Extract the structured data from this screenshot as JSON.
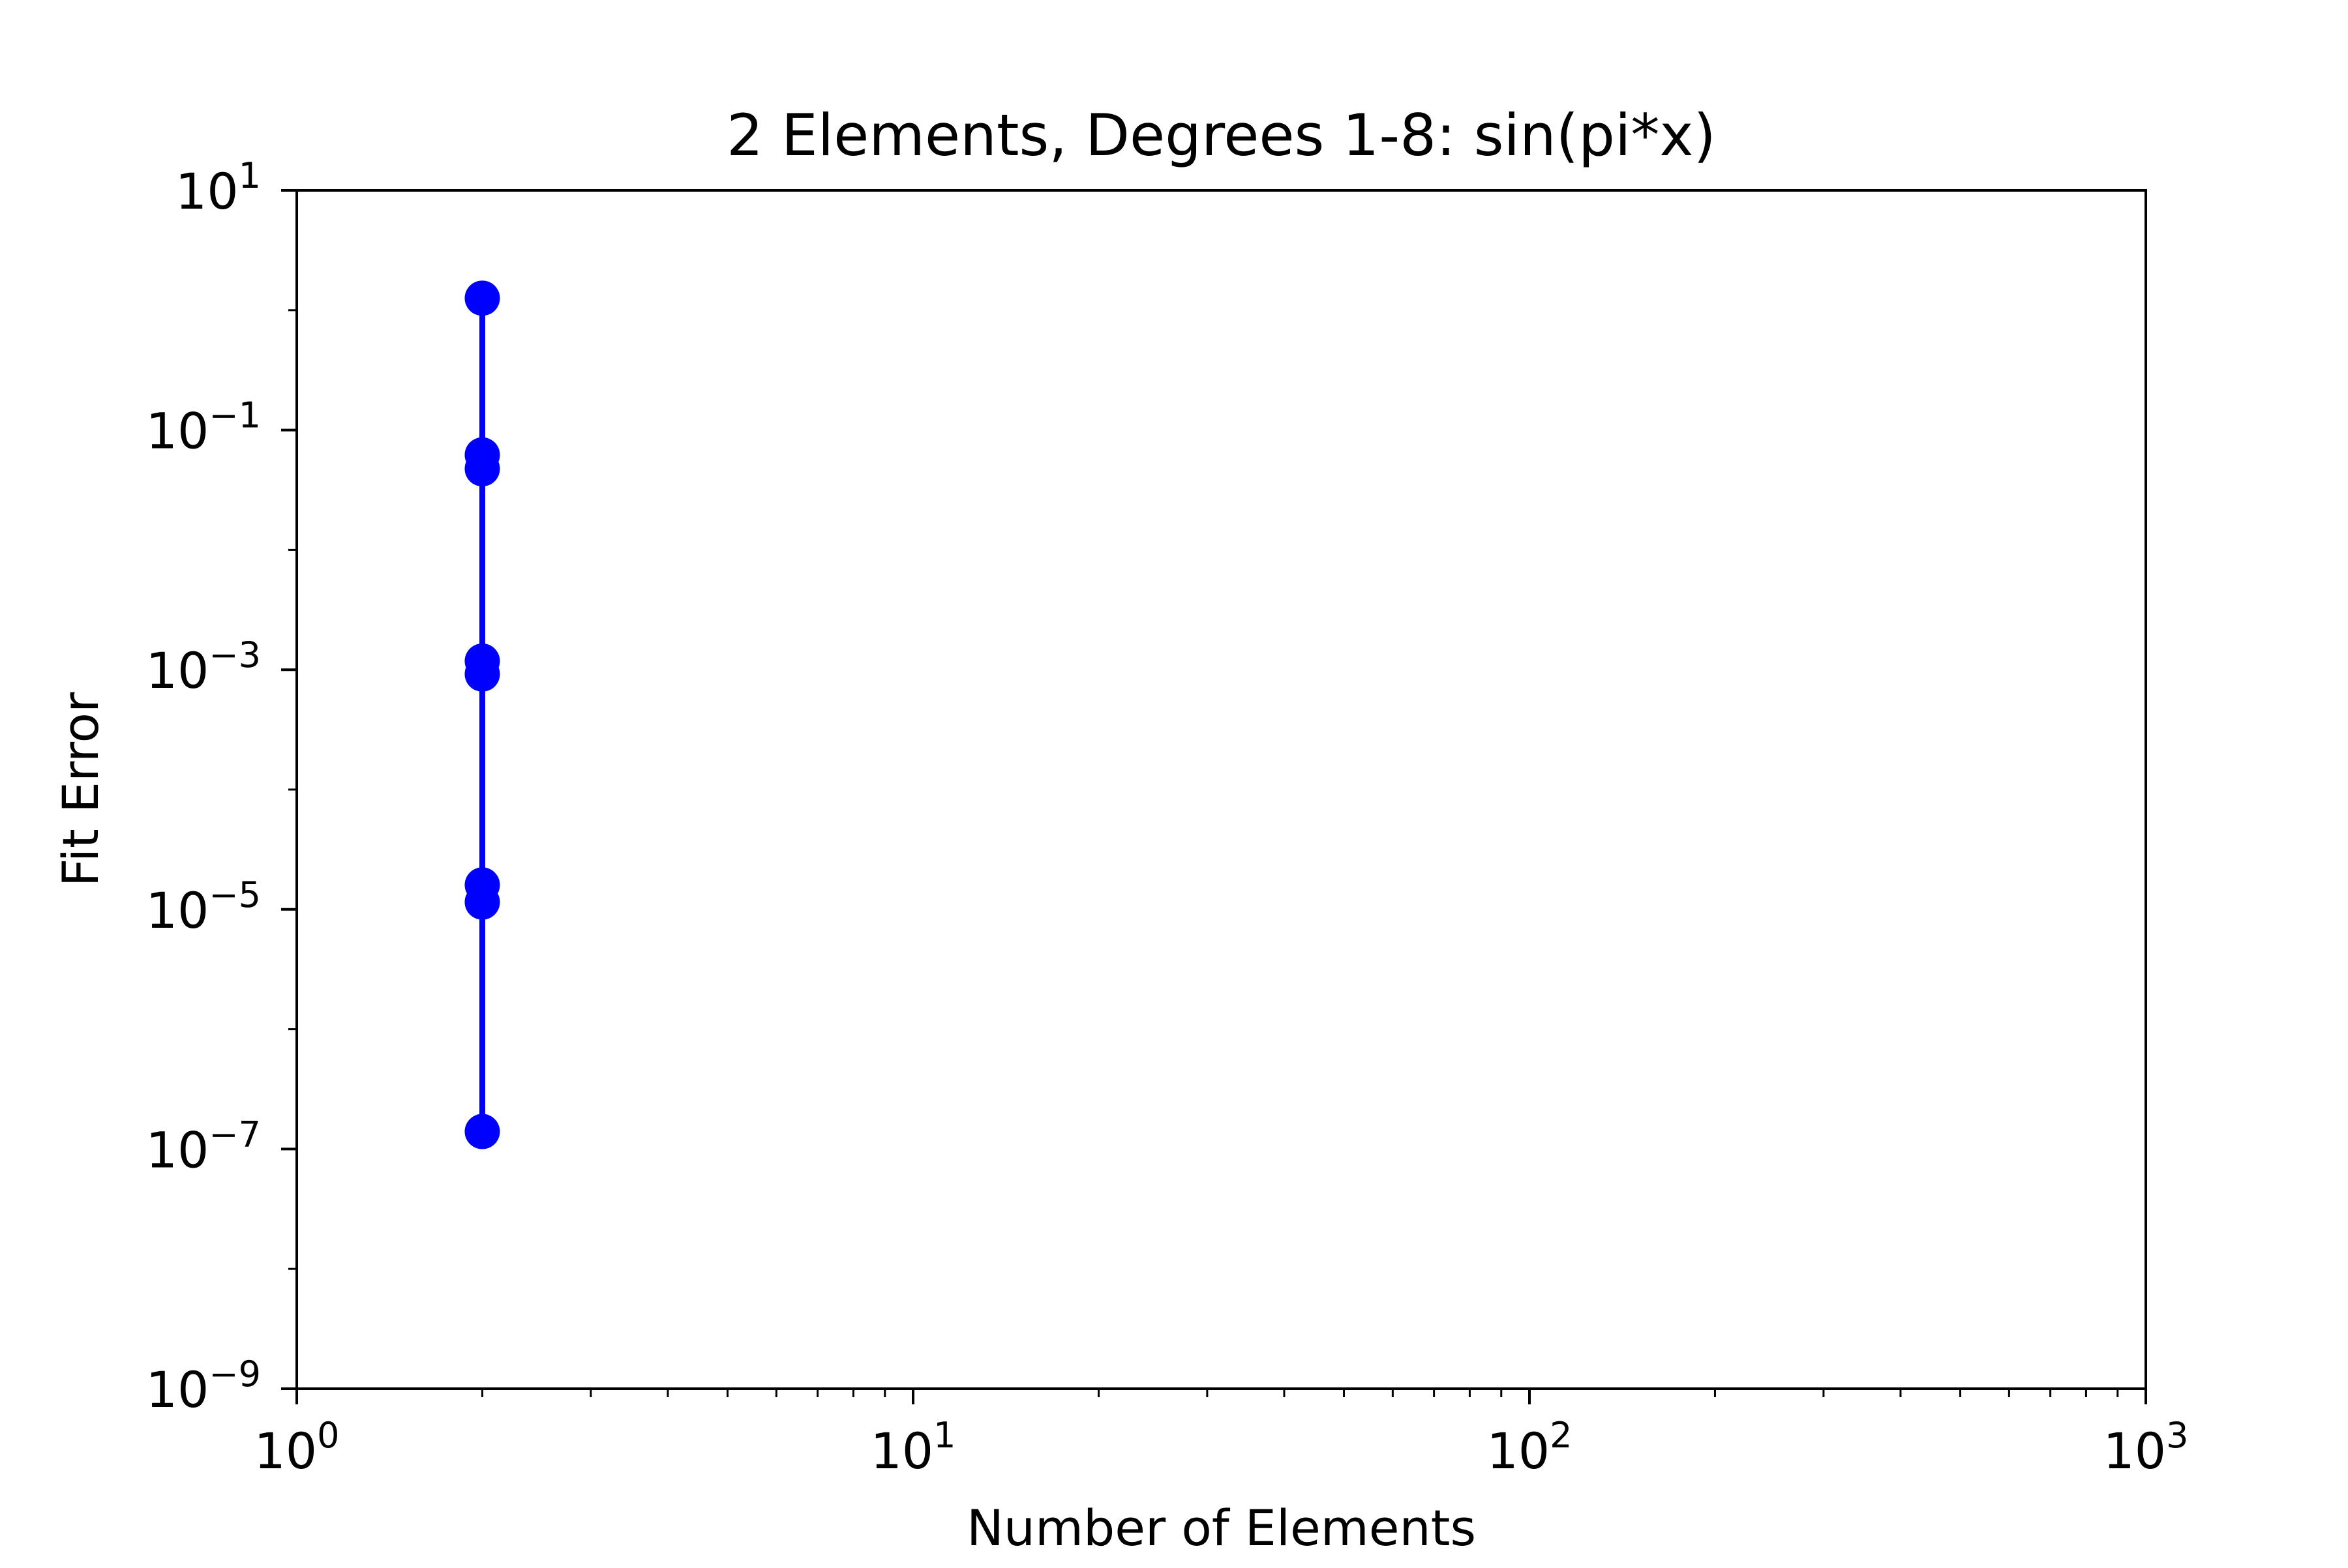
{
  "chart_data": {
    "type": "line",
    "title": "2 Elements, Degrees 1-8: sin(pi*x)",
    "xlabel": "Number of Elements",
    "ylabel": "Fit Error",
    "xscale": "log",
    "yscale": "log",
    "xlim": [
      1,
      1000
    ],
    "ylim": [
      1e-09,
      10
    ],
    "x_ticks": [
      {
        "value": 1,
        "base": "10",
        "exp": "0"
      },
      {
        "value": 10,
        "base": "10",
        "exp": "1"
      },
      {
        "value": 100,
        "base": "10",
        "exp": "2"
      },
      {
        "value": 1000,
        "base": "10",
        "exp": "3"
      }
    ],
    "y_ticks": [
      {
        "value": 1e-09,
        "base": "10",
        "exp": "−9"
      },
      {
        "value": 1e-07,
        "base": "10",
        "exp": "−7"
      },
      {
        "value": 1e-05,
        "base": "10",
        "exp": "−5"
      },
      {
        "value": 0.001,
        "base": "10",
        "exp": "−3"
      },
      {
        "value": 0.1,
        "base": "10",
        "exp": "−1"
      },
      {
        "value": 10,
        "base": "10",
        "exp": "1"
      }
    ],
    "grid": false,
    "series": [
      {
        "color": "#0000ff",
        "marker": "circle",
        "x": [
          2,
          2,
          2,
          2,
          2,
          2,
          2,
          2
        ],
        "y": [
          1.26,
          0.062,
          0.0475,
          0.00118,
          0.00092,
          1.6e-05,
          1.15e-05,
          1.4e-07
        ]
      }
    ]
  }
}
